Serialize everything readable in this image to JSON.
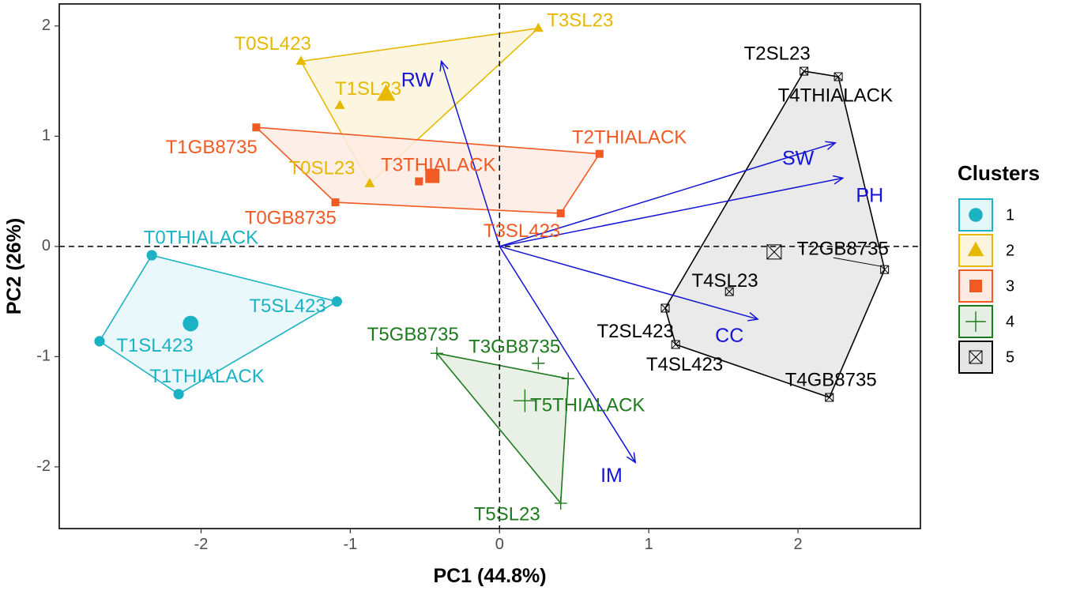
{
  "chart_data": {
    "type": "scatter",
    "subtype": "PCA biplot with cluster hulls",
    "xlabel": "PC1 (44.8%)",
    "ylabel": "PC2 (26%)",
    "xlim": [
      -2.95,
      2.82
    ],
    "ylim": [
      -2.56,
      2.2
    ],
    "x_ticks": [
      -2,
      -1,
      0,
      1,
      2
    ],
    "y_ticks": [
      -2,
      -1,
      0,
      1,
      2
    ],
    "x_tick_labels": [
      "-2",
      "-1",
      "0",
      "1",
      "2"
    ],
    "y_tick_labels": [
      "-2",
      "-1",
      "0",
      "1",
      "2"
    ],
    "grid": false,
    "legend": {
      "title": "Clusters",
      "position": "right"
    },
    "clusters": [
      {
        "id": "1",
        "label": "1",
        "color": "#1BB3C4",
        "fill": "#E6F7FA",
        "shape": "circle",
        "centroid": [
          -2.07,
          -0.7
        ],
        "hull": [
          [
            -2.33,
            -0.08
          ],
          [
            -1.09,
            -0.5
          ],
          [
            -2.15,
            -1.34
          ],
          [
            -2.68,
            -0.86
          ]
        ],
        "points": [
          {
            "label": "T0THIALACK",
            "x": -2.33,
            "y": -0.08,
            "lx": -2.0,
            "ly": 0.07
          },
          {
            "label": "T5SL423",
            "x": -1.09,
            "y": -0.5,
            "lx": -1.42,
            "ly": -0.55
          },
          {
            "label": "T1SL423",
            "x": -2.68,
            "y": -0.86,
            "lx": -2.31,
            "ly": -0.91
          },
          {
            "label": "T1THIALACK",
            "x": -2.15,
            "y": -1.34,
            "lx": -1.96,
            "ly": -1.19
          }
        ]
      },
      {
        "id": "2",
        "label": "2",
        "color": "#E6B800",
        "fill": "#FCF4DC",
        "shape": "triangle",
        "centroid": [
          -0.76,
          1.38
        ],
        "hull": [
          [
            -1.33,
            1.68
          ],
          [
            0.26,
            1.98
          ],
          [
            -0.87,
            0.57
          ]
        ],
        "points": [
          {
            "label": "T3SL23",
            "x": 0.26,
            "y": 1.98,
            "lx": 0.54,
            "ly": 2.04
          },
          {
            "label": "T0SL423",
            "x": -1.33,
            "y": 1.68,
            "lx": -1.52,
            "ly": 1.83
          },
          {
            "label": "T1SL23",
            "x": -1.07,
            "y": 1.28,
            "lx": -0.88,
            "ly": 1.42
          },
          {
            "label": "T0SL23",
            "x": -0.87,
            "y": 0.57,
            "lx": -1.19,
            "ly": 0.7
          }
        ]
      },
      {
        "id": "3",
        "label": "3",
        "color": "#F15A22",
        "fill": "#FDEBE3",
        "shape": "square",
        "centroid": [
          -0.45,
          0.64
        ],
        "hull": [
          [
            -1.63,
            1.08
          ],
          [
            0.67,
            0.84
          ],
          [
            0.41,
            0.3
          ],
          [
            -1.1,
            0.4
          ]
        ],
        "points": [
          {
            "label": "T1GB8735",
            "x": -1.63,
            "y": 1.08,
            "lx": -1.93,
            "ly": 0.89
          },
          {
            "label": "T2THIALACK",
            "x": 0.67,
            "y": 0.84,
            "lx": 0.87,
            "ly": 0.98
          },
          {
            "label": "T3THIALACK",
            "x": -0.54,
            "y": 0.59,
            "lx": -0.41,
            "ly": 0.73
          },
          {
            "label": "T0GB8735",
            "x": -1.1,
            "y": 0.4,
            "lx": -1.4,
            "ly": 0.25
          },
          {
            "label": "T3SL423",
            "x": 0.41,
            "y": 0.3,
            "lx": 0.15,
            "ly": 0.13
          }
        ]
      },
      {
        "id": "4",
        "label": "4",
        "color": "#1E7A1E",
        "fill": "#E5EFE3",
        "shape": "plus",
        "centroid": [
          0.17,
          -1.4
        ],
        "hull": [
          [
            -0.42,
            -0.97
          ],
          [
            0.46,
            -1.2
          ],
          [
            0.41,
            -2.33
          ]
        ],
        "points": [
          {
            "label": "T5GB8735",
            "x": -0.42,
            "y": -0.97,
            "lx": -0.58,
            "ly": -0.81
          },
          {
            "label": "T3GB8735",
            "x": 0.26,
            "y": -1.06,
            "lx": 0.1,
            "ly": -0.92
          },
          {
            "label": "T5THIALACK",
            "x": 0.46,
            "y": -1.2,
            "lx": 0.59,
            "ly": -1.45
          },
          {
            "label": "T5SL23",
            "x": 0.41,
            "y": -2.33,
            "lx": 0.05,
            "ly": -2.44
          }
        ]
      },
      {
        "id": "5",
        "label": "5",
        "color": "#000000",
        "fill": "#E6E6E6",
        "shape": "boxx",
        "centroid": [
          1.84,
          -0.05
        ],
        "hull": [
          [
            2.04,
            1.59
          ],
          [
            2.27,
            1.54
          ],
          [
            2.58,
            -0.21
          ],
          [
            2.21,
            -1.37
          ],
          [
            1.18,
            -0.89
          ],
          [
            1.11,
            -0.56
          ]
        ],
        "points": [
          {
            "label": "T2SL23",
            "x": 2.04,
            "y": 1.59,
            "lx": 1.86,
            "ly": 1.74
          },
          {
            "label": "T4THIALACK",
            "x": 2.27,
            "y": 1.54,
            "lx": 2.25,
            "ly": 1.36
          },
          {
            "label": "T2GB8735",
            "x": 2.58,
            "y": -0.21,
            "lx": 2.3,
            "ly": -0.03,
            "leader": true
          },
          {
            "label": "T4SL23",
            "x": 1.54,
            "y": -0.41,
            "lx": 1.51,
            "ly": -0.32
          },
          {
            "label": "T2SL423",
            "x": 1.11,
            "y": -0.56,
            "lx": 0.91,
            "ly": -0.78
          },
          {
            "label": "T4SL423",
            "x": 1.18,
            "y": -0.89,
            "lx": 1.24,
            "ly": -1.08
          },
          {
            "label": "T4GB8735",
            "x": 2.21,
            "y": -1.37,
            "lx": 2.22,
            "ly": -1.22
          }
        ]
      }
    ],
    "variables": [
      {
        "label": "RW",
        "x": -0.39,
        "y": 1.68,
        "lx": -0.55,
        "ly": 1.5
      },
      {
        "label": "SW",
        "x": 2.25,
        "y": 0.94,
        "lx": 2.0,
        "ly": 0.79
      },
      {
        "label": "PH",
        "x": 2.3,
        "y": 0.62,
        "lx": 2.48,
        "ly": 0.45
      },
      {
        "label": "CC",
        "x": 1.73,
        "y": -0.66,
        "lx": 1.54,
        "ly": -0.82
      },
      {
        "label": "IM",
        "x": 0.91,
        "y": -1.96,
        "lx": 0.75,
        "ly": -2.09
      }
    ],
    "variable_color": "#1414D4"
  }
}
